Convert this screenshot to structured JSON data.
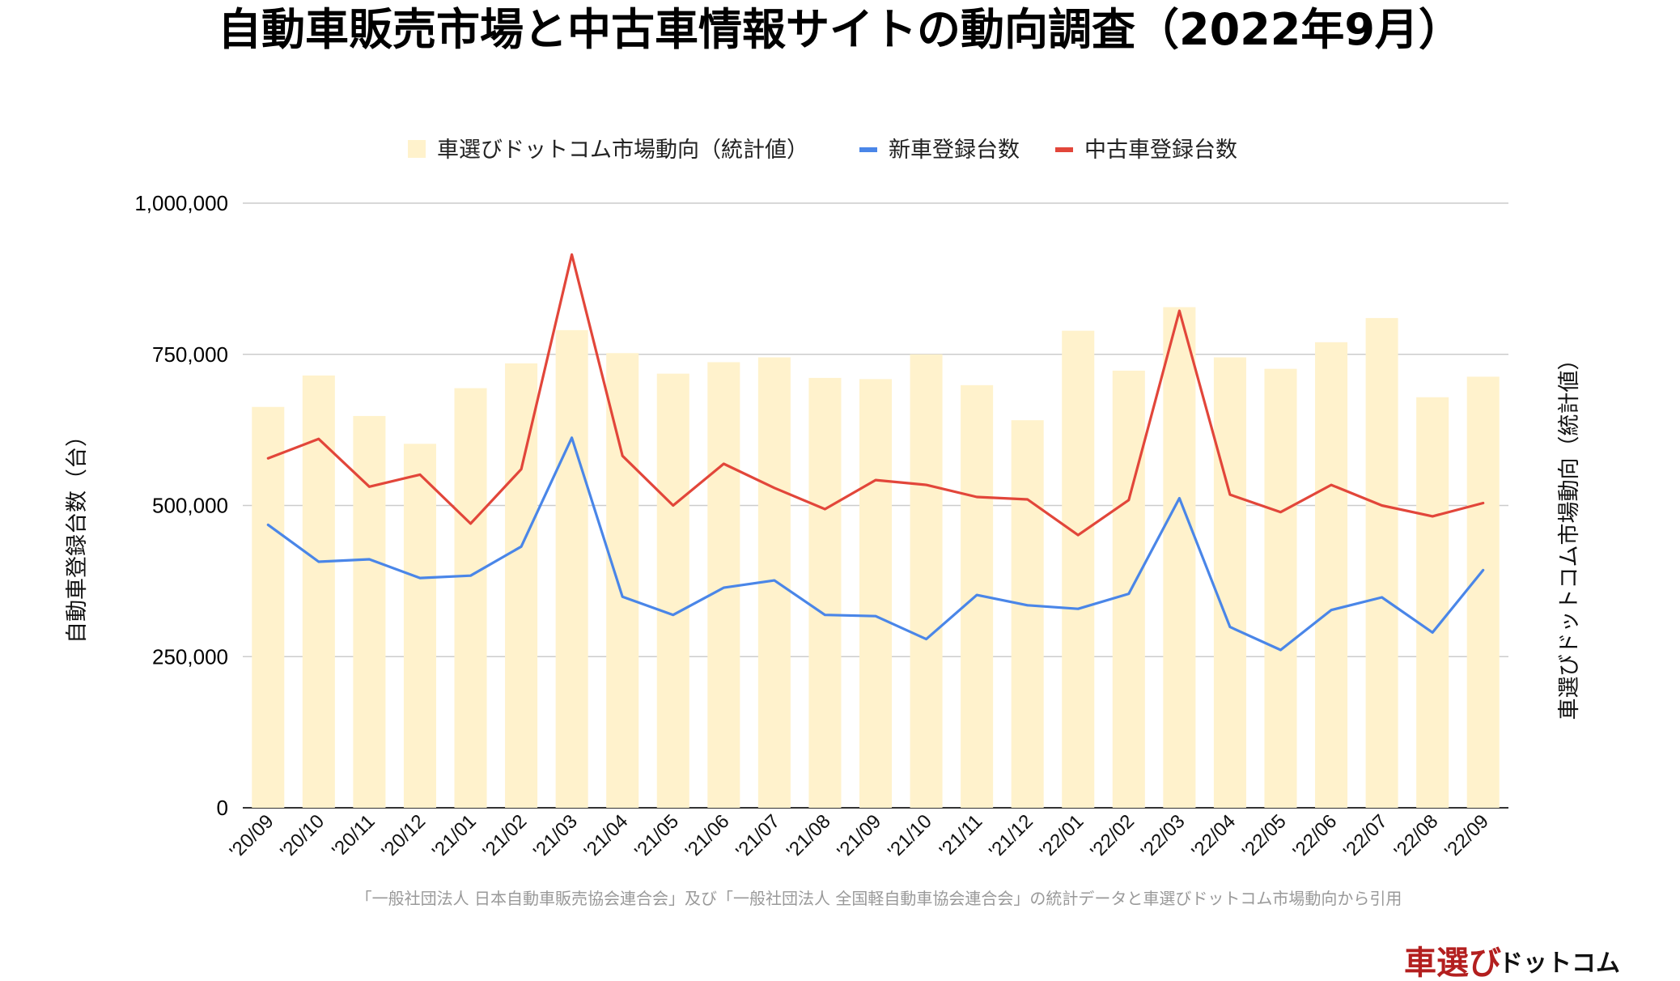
{
  "chart_data": {
    "type": "bar",
    "title": "自動車販売市場と中古車情報サイトの動向調査（2022年9月）",
    "categories": [
      "'20/09",
      "'20/10",
      "'20/11",
      "'20/12",
      "'21/01",
      "'21/02",
      "'21/03",
      "'21/04",
      "'21/05",
      "'21/06",
      "'21/07",
      "'21/08",
      "'21/09",
      "'21/10",
      "'21/11",
      "'21/12",
      "'22/01",
      "'22/02",
      "'22/03",
      "'22/04",
      "'22/05",
      "'22/06",
      "'22/07",
      "'22/08",
      "'22/09"
    ],
    "series": [
      {
        "name": "車選びドットコム市場動向（統計値）",
        "type": "bar",
        "axis": "right",
        "color": "#fff2cc",
        "values": [
          663000,
          715000,
          648000,
          602000,
          694000,
          735000,
          790000,
          752000,
          718000,
          737000,
          745000,
          711000,
          709000,
          750000,
          699000,
          641000,
          789000,
          723000,
          828000,
          745000,
          726000,
          770000,
          810000,
          679000,
          713000
        ]
      },
      {
        "name": "新車登録台数",
        "type": "line",
        "axis": "left",
        "color": "#4a86e8",
        "values": [
          468000,
          407000,
          411000,
          380000,
          384000,
          432000,
          612000,
          349000,
          319000,
          364000,
          376000,
          319000,
          317000,
          279000,
          352000,
          335000,
          329000,
          354000,
          512000,
          299000,
          261000,
          327000,
          348000,
          290000,
          393000
        ]
      },
      {
        "name": "中古車登録台数",
        "type": "line",
        "axis": "left",
        "color": "#e2463a",
        "values": [
          578000,
          610000,
          531000,
          551000,
          470000,
          560000,
          915000,
          582000,
          500000,
          569000,
          529000,
          494000,
          542000,
          534000,
          514000,
          510000,
          451000,
          509000,
          822000,
          518000,
          489000,
          534000,
          500000,
          482000,
          504000
        ]
      }
    ],
    "ylim": [
      0,
      1000000
    ],
    "yticks": [
      0,
      250000,
      500000,
      750000,
      1000000
    ],
    "ytick_labels": [
      "0",
      "250,000",
      "500,000",
      "750,000",
      "1,000,000"
    ],
    "ylabel": "自動車登録台数（台）",
    "ylabel_right": "車選びドットコム市場動向（統計値）",
    "legend_position": "top-center",
    "grid": true
  },
  "source_note": "「一般社団法人 日本自動車販売協会連合会」及び「一般社団法人 全国軽自動車協会連合会」の統計データと車選びドットコム市場動向から引用",
  "logo": {
    "main": "車選び",
    "sub": "ドットコム"
  }
}
